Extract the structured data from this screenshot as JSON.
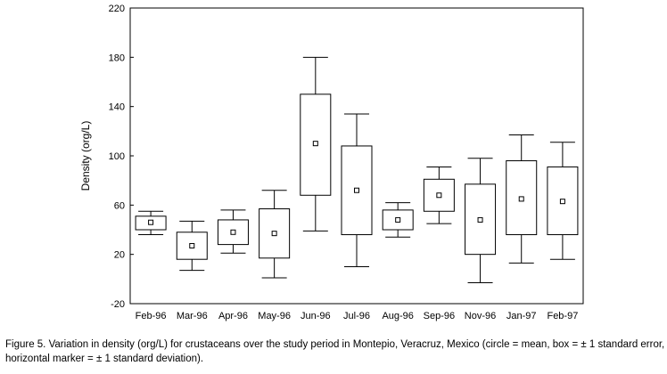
{
  "chart_data": {
    "type": "box",
    "title": "",
    "xlabel": "",
    "ylabel": "Density (org/L)",
    "ylim": [
      -20,
      220
    ],
    "yticks": [
      "-20",
      "20",
      "60",
      "100",
      "140",
      "180",
      "220"
    ],
    "grid": false,
    "legend": "none",
    "categories": [
      "Feb-96",
      "Mar-96",
      "Apr-96",
      "May-96",
      "Jun-96",
      "Jul-96",
      "Aug-96",
      "Sep-96",
      "Nov-96",
      "Jan-97",
      "Feb-97"
    ],
    "series": [
      {
        "name": "Crustacean density",
        "mean": [
          46,
          27,
          38,
          37,
          110,
          72,
          48,
          68,
          48,
          65,
          63
        ],
        "se_low": [
          40,
          16,
          28,
          17,
          68,
          36,
          40,
          55,
          20,
          36,
          36
        ],
        "se_high": [
          51,
          38,
          48,
          57,
          150,
          108,
          56,
          81,
          77,
          96,
          91
        ],
        "sd_low": [
          36,
          7,
          21,
          1,
          39,
          10,
          34,
          45,
          -3,
          13,
          16
        ],
        "sd_high": [
          55,
          47,
          56,
          72,
          180,
          134,
          62,
          91,
          98,
          117,
          111
        ]
      }
    ]
  },
  "caption": {
    "line1": "Figure 5. Variation in density (org/L) for crustaceans over the study period in Montepio, Veracruz, Mexico (circle = mean, box = ± 1 standard error,",
    "line2": "horizontal marker = ± 1 standard deviation)."
  }
}
